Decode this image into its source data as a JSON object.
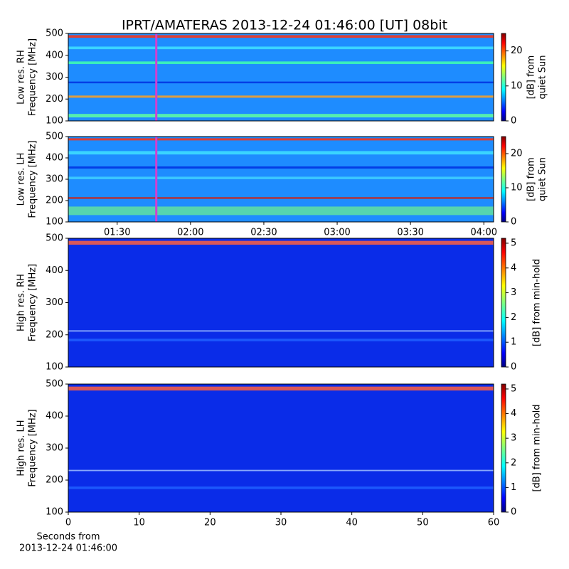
{
  "chart_data": [
    {
      "type": "heatmap",
      "title": "IPRT/AMATERAS 2013-12-24 01:46:00 [UT]   08bit",
      "ylabel": [
        "Low res. RH",
        "Frequency [MHz]"
      ],
      "ylim": [
        100,
        500
      ],
      "yticks": [
        100,
        200,
        300,
        400,
        500
      ],
      "xlim": [
        70,
        244
      ],
      "marker_x": 106,
      "marker_color": "#d040d0",
      "colorbar_label": [
        "[dB] from",
        "quiet Sun"
      ],
      "clim": [
        0,
        25
      ],
      "cticks": [
        0,
        10,
        20
      ]
    },
    {
      "type": "heatmap",
      "ylabel": [
        "Low res. LH",
        "Frequency [MHz]"
      ],
      "ylim": [
        100,
        500
      ],
      "yticks": [
        100,
        200,
        300,
        400,
        500
      ],
      "xlim": [
        70,
        244
      ],
      "marker_x": 106,
      "marker_color": "#d040d0",
      "xticks": [
        {
          "value": 90,
          "label": "01:30"
        },
        {
          "value": 120,
          "label": "02:00"
        },
        {
          "value": 150,
          "label": "02:30"
        },
        {
          "value": 180,
          "label": "03:00"
        },
        {
          "value": 210,
          "label": "03:30"
        },
        {
          "value": 240,
          "label": "04:00"
        }
      ],
      "colorbar_label": [
        "[dB] from",
        "quiet Sun"
      ],
      "clim": [
        0,
        25
      ],
      "cticks": [
        0,
        10,
        20
      ]
    },
    {
      "type": "heatmap",
      "ylabel": [
        "High res. RH",
        "Frequency [MHz]"
      ],
      "ylim": [
        100,
        500
      ],
      "yticks": [
        100,
        200,
        300,
        400,
        500
      ],
      "xlim": [
        0,
        60
      ],
      "colorbar_label": [
        "[dB] from min-hold"
      ],
      "clim": [
        0,
        5.2
      ],
      "cticks": [
        0,
        1,
        2,
        3,
        4,
        5
      ]
    },
    {
      "type": "heatmap",
      "ylabel": [
        "High res. LH",
        "Frequency [MHz]"
      ],
      "ylim": [
        100,
        500
      ],
      "yticks": [
        100,
        200,
        300,
        400,
        500
      ],
      "xlim": [
        0,
        60
      ],
      "xticks": [
        0,
        10,
        20,
        30,
        40,
        50,
        60
      ],
      "xlabel": [
        "Seconds from",
        "2013-12-24 01:46:00"
      ],
      "colorbar_label": [
        "[dB] from min-hold"
      ],
      "clim": [
        0,
        5.2
      ],
      "cticks": [
        0,
        1,
        2,
        3,
        4,
        5
      ]
    }
  ]
}
